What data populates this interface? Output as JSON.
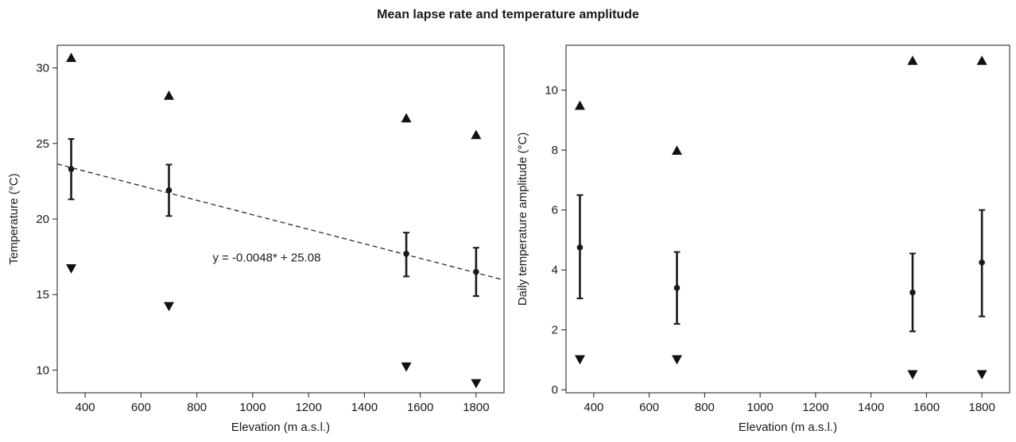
{
  "title": "Mean lapse rate and temperature amplitude",
  "chart_data": [
    {
      "type": "scatter",
      "xlabel": "Elevation (m a.s.l.)",
      "ylabel": "Temperature (°C)",
      "xlim": [
        300,
        1900
      ],
      "ylim": [
        8.5,
        31.5
      ],
      "xticks": [
        400,
        600,
        800,
        1000,
        1200,
        1400,
        1600,
        1800
      ],
      "yticks": [
        10,
        15,
        20,
        25,
        30
      ],
      "grid": false,
      "x": [
        350,
        700,
        1550,
        1800
      ],
      "series": [
        {
          "role": "mean",
          "values": [
            23.3,
            21.9,
            17.7,
            16.5
          ]
        },
        {
          "role": "error_low",
          "values": [
            21.3,
            20.2,
            16.2,
            14.9
          ]
        },
        {
          "role": "error_high",
          "values": [
            25.3,
            23.6,
            19.1,
            18.1
          ]
        },
        {
          "role": "max",
          "values": [
            30.7,
            28.2,
            26.7,
            25.6
          ]
        },
        {
          "role": "min",
          "values": [
            16.7,
            14.2,
            10.2,
            9.1
          ]
        }
      ],
      "trendline": {
        "slope": -0.0048,
        "intercept": 25.08,
        "style": "dashed"
      },
      "annotation": "y = -0.0048* + 25.08",
      "annotation_at": {
        "x": 1050,
        "y": 17.2
      }
    },
    {
      "type": "scatter",
      "xlabel": "Elevation (m a.s.l.)",
      "ylabel": "Daily temperature amplitude (°C)",
      "xlim": [
        300,
        1900
      ],
      "ylim": [
        -0.1,
        11.5
      ],
      "xticks": [
        400,
        600,
        800,
        1000,
        1200,
        1400,
        1600,
        1800
      ],
      "yticks": [
        0,
        2,
        4,
        6,
        8,
        10
      ],
      "grid": false,
      "x": [
        350,
        700,
        1550,
        1800
      ],
      "series": [
        {
          "role": "mean",
          "values": [
            4.75,
            3.4,
            3.25,
            4.25
          ]
        },
        {
          "role": "error_low",
          "values": [
            3.05,
            2.2,
            1.95,
            2.45
          ]
        },
        {
          "role": "error_high",
          "values": [
            6.5,
            4.6,
            4.55,
            6.0
          ]
        },
        {
          "role": "max",
          "values": [
            9.5,
            8.0,
            11.0,
            11.0
          ]
        },
        {
          "role": "min",
          "values": [
            1.0,
            1.0,
            0.5,
            0.5
          ]
        }
      ]
    }
  ]
}
